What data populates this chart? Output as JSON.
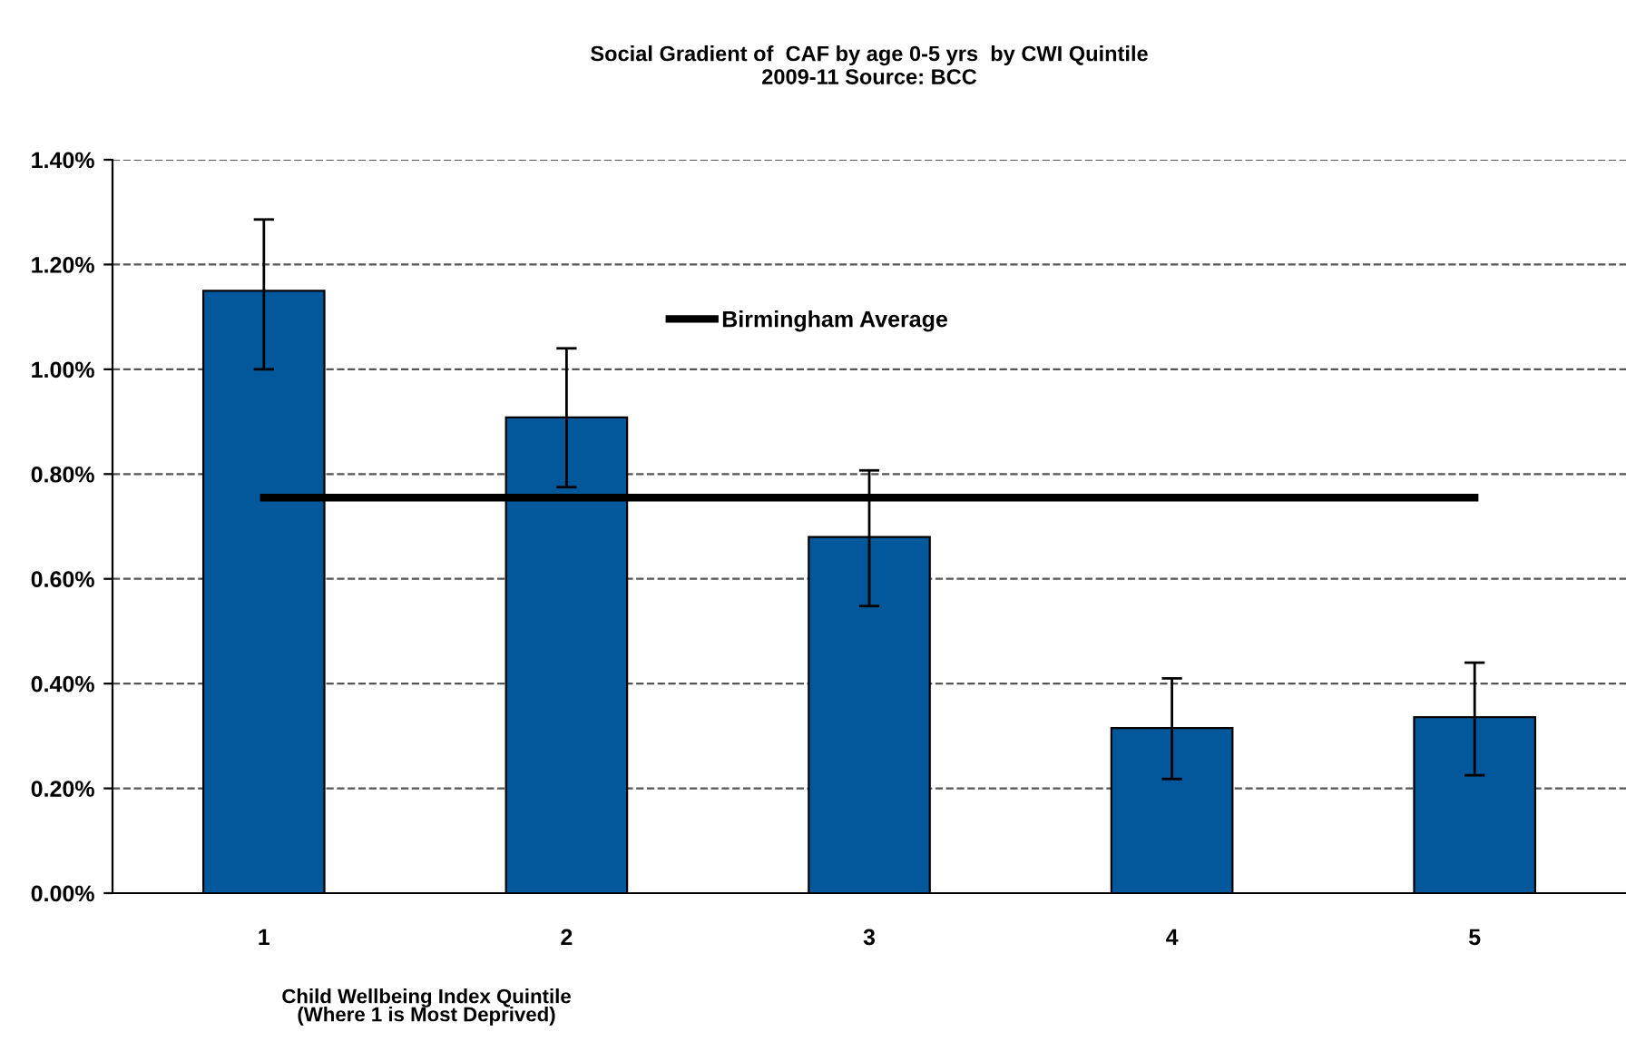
{
  "chart_data": {
    "type": "bar",
    "title": "Social Gradient of  CAF by age 0-5 yrs  by CWI Quintile\n2009-11 Source: BCC",
    "xlabel": "Child Wellbeing Index Quintile\n(Where 1 is Most Deprived)",
    "categories": [
      "1",
      "2",
      "3",
      "4",
      "5"
    ],
    "series": [
      {
        "color": "#02589a",
        "values": [
          1.15,
          0.908,
          0.68,
          0.315,
          0.336
        ],
        "errors": [
          [
            1.0,
            1.286
          ],
          [
            0.775,
            1.04
          ],
          [
            0.548,
            0.807
          ],
          [
            0.218,
            0.41
          ],
          [
            0.225,
            0.44
          ]
        ]
      },
      {
        "type": "line",
        "name": "Birmingham Average",
        "color": "#000000",
        "values": [
          0.755,
          0.755,
          0.755,
          0.755,
          0.755
        ]
      }
    ],
    "ylim": [
      0,
      1.4
    ],
    "yticks": [
      {
        "value": 0,
        "label": "0.00%"
      },
      {
        "value": 0.2,
        "label": "0.20%"
      },
      {
        "value": 0.4,
        "label": "0.40%"
      },
      {
        "value": 0.6,
        "label": "0.60%"
      },
      {
        "value": 0.8,
        "label": "0.80%"
      },
      {
        "value": 1.0,
        "label": "1.00%"
      },
      {
        "value": 1.2,
        "label": "1.20%"
      },
      {
        "value": 1.4,
        "label": "1.40%"
      }
    ],
    "grid": "y",
    "legend": "top",
    "marker": "none",
    "line_style": "solid"
  }
}
